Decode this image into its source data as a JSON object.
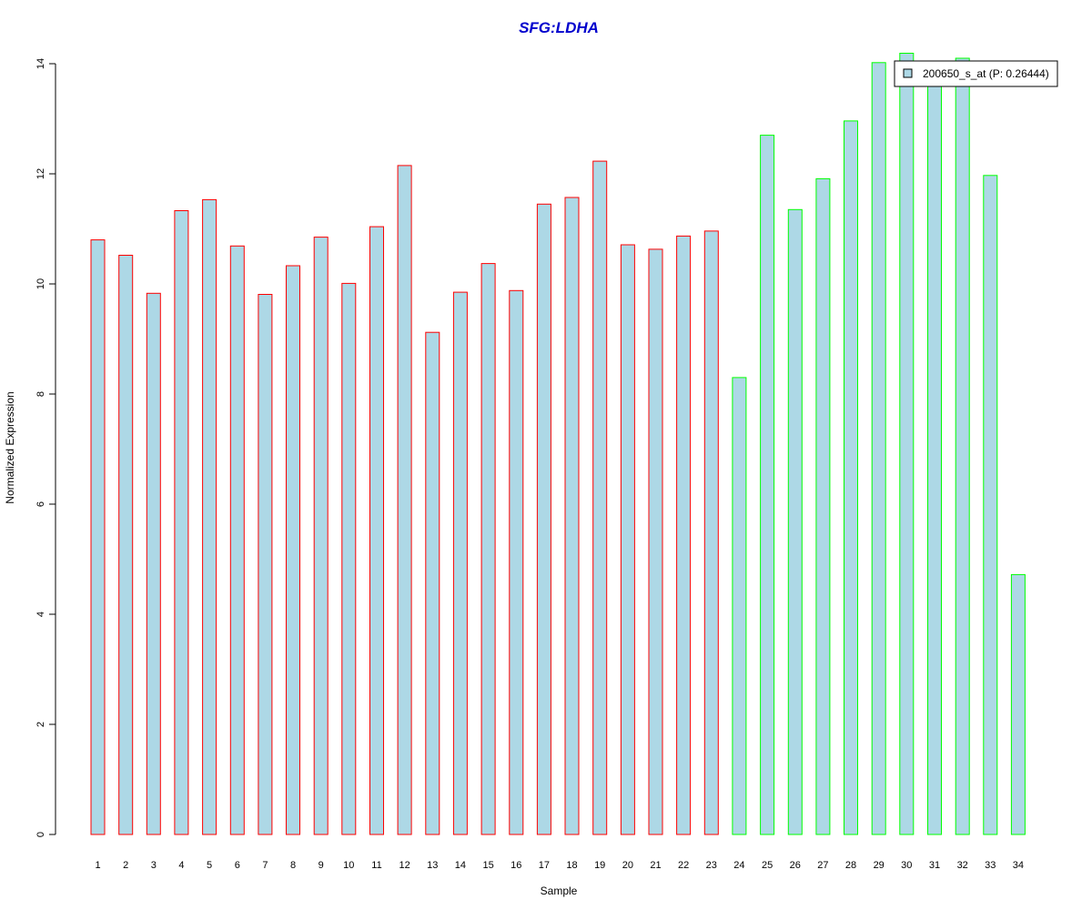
{
  "chart_data": {
    "type": "bar",
    "title": "SFG:LDHA",
    "xlabel": "Sample",
    "ylabel": "Normalized Expression",
    "ylim": [
      0,
      14
    ],
    "yticks": [
      "0",
      "2",
      "4",
      "6",
      "8",
      "10",
      "12",
      "14"
    ],
    "categories": [
      "1",
      "2",
      "3",
      "4",
      "5",
      "6",
      "7",
      "8",
      "9",
      "10",
      "11",
      "12",
      "13",
      "14",
      "15",
      "16",
      "17",
      "18",
      "19",
      "20",
      "21",
      "22",
      "23",
      "24",
      "25",
      "26",
      "27",
      "28",
      "29",
      "30",
      "31",
      "32",
      "33",
      "34"
    ],
    "series": [
      {
        "name": "200650_s_at (P: 0.26444)",
        "values": [
          10.8,
          10.52,
          9.83,
          11.33,
          11.53,
          10.69,
          9.81,
          10.33,
          10.85,
          10.01,
          11.04,
          12.15,
          9.12,
          9.85,
          10.37,
          9.88,
          11.45,
          11.57,
          12.23,
          10.71,
          10.63,
          10.87,
          10.96,
          8.3,
          12.7,
          11.35,
          11.91,
          12.96,
          14.02,
          14.19,
          13.85,
          14.1,
          11.97,
          4.72
        ]
      }
    ],
    "bar_group": [
      1,
      1,
      1,
      1,
      1,
      1,
      1,
      1,
      1,
      1,
      1,
      1,
      1,
      1,
      1,
      1,
      1,
      1,
      1,
      1,
      1,
      1,
      1,
      2,
      2,
      2,
      2,
      2,
      2,
      2,
      2,
      2,
      2,
      2
    ],
    "colors": {
      "bar_fill": "#add8e6",
      "group1_border": "#ff0000",
      "group2_border": "#00ff00",
      "title": "#0000cd",
      "axis": "#000000"
    },
    "legend_position": "top-right",
    "grid": false
  }
}
